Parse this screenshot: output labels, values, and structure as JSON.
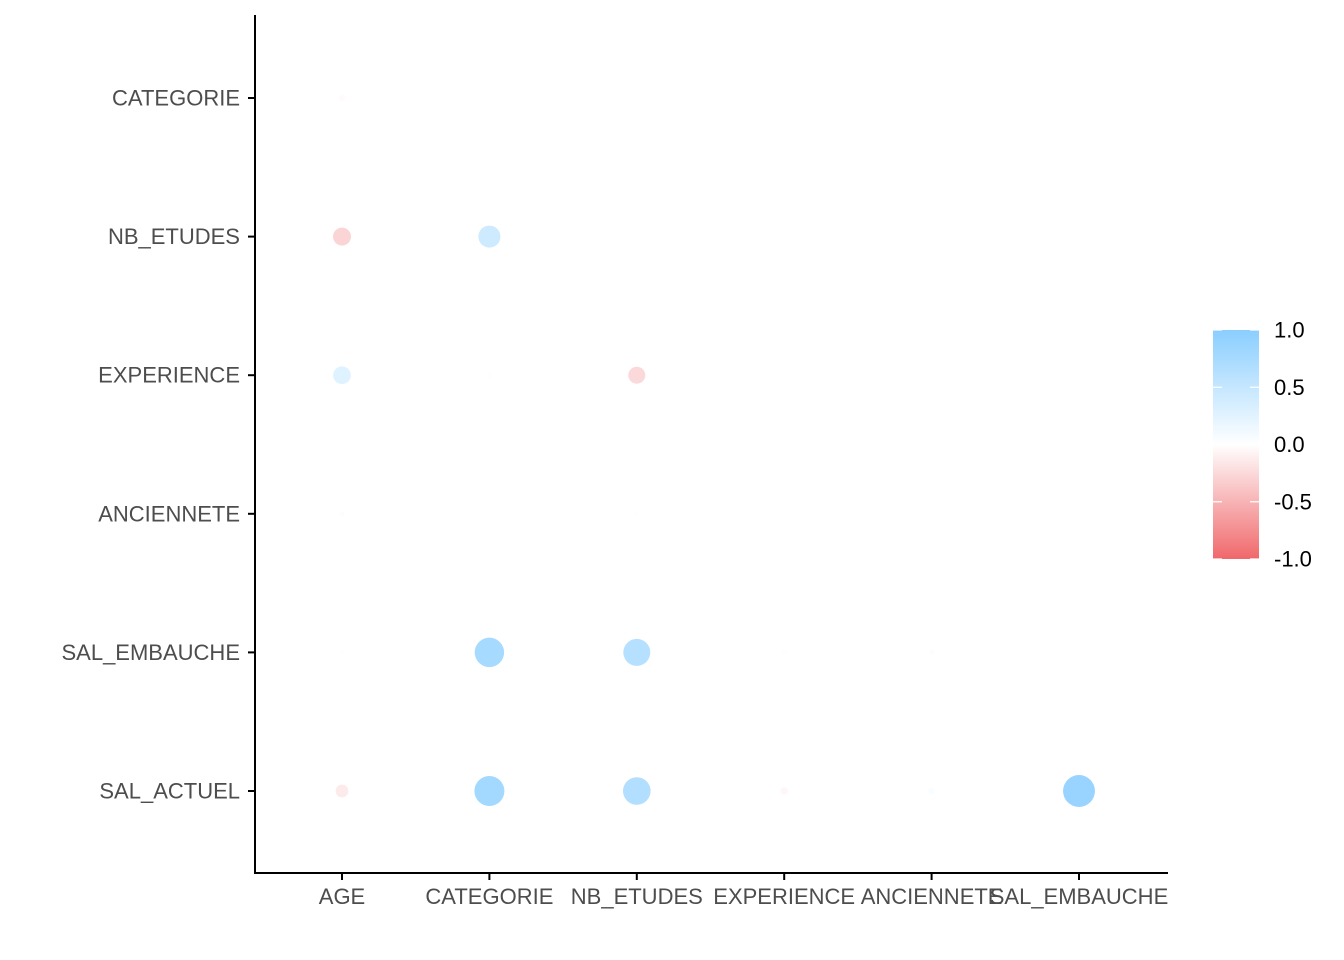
{
  "chart_data": {
    "type": "scatter",
    "subtype": "correlation-matrix-lower-triangle",
    "title": "",
    "xlabel": "",
    "ylabel": "",
    "x_categories": [
      "AGE",
      "CATEGORIE",
      "NB_ETUDES",
      "EXPERIENCE",
      "ANCIENNETE",
      "SAL_EMBAUCHE"
    ],
    "y_categories": [
      "CATEGORIE",
      "NB_ETUDES",
      "EXPERIENCE",
      "ANCIENNETE",
      "SAL_EMBAUCHE",
      "SAL_ACTUEL"
    ],
    "cells": [
      {
        "x": "AGE",
        "y": "CATEGORIE",
        "value": -0.03
      },
      {
        "x": "AGE",
        "y": "NB_ETUDES",
        "value": -0.28
      },
      {
        "x": "CATEGORIE",
        "y": "NB_ETUDES",
        "value": 0.42
      },
      {
        "x": "AGE",
        "y": "EXPERIENCE",
        "value": 0.27
      },
      {
        "x": "CATEGORIE",
        "y": "EXPERIENCE",
        "value": 0.02
      },
      {
        "x": "NB_ETUDES",
        "y": "EXPERIENCE",
        "value": -0.25
      },
      {
        "x": "AGE",
        "y": "ANCIENNETE",
        "value": -0.02
      },
      {
        "x": "CATEGORIE",
        "y": "ANCIENNETE",
        "value": 0.01
      },
      {
        "x": "NB_ETUDES",
        "y": "ANCIENNETE",
        "value": 0.02
      },
      {
        "x": "EXPERIENCE",
        "y": "ANCIENNETE",
        "value": 0.0
      },
      {
        "x": "AGE",
        "y": "SAL_EMBAUCHE",
        "value": -0.01
      },
      {
        "x": "CATEGORIE",
        "y": "SAL_EMBAUCHE",
        "value": 0.75
      },
      {
        "x": "NB_ETUDES",
        "y": "SAL_EMBAUCHE",
        "value": 0.63
      },
      {
        "x": "EXPERIENCE",
        "y": "SAL_EMBAUCHE",
        "value": 0.02
      },
      {
        "x": "ANCIENNETE",
        "y": "SAL_EMBAUCHE",
        "value": -0.02
      },
      {
        "x": "AGE",
        "y": "SAL_ACTUEL",
        "value": -0.14
      },
      {
        "x": "CATEGORIE",
        "y": "SAL_ACTUEL",
        "value": 0.78
      },
      {
        "x": "NB_ETUDES",
        "y": "SAL_ACTUEL",
        "value": 0.66
      },
      {
        "x": "EXPERIENCE",
        "y": "SAL_ACTUEL",
        "value": -0.05
      },
      {
        "x": "ANCIENNETE",
        "y": "SAL_ACTUEL",
        "value": 0.04
      },
      {
        "x": "SAL_EMBAUCHE",
        "y": "SAL_ACTUEL",
        "value": 0.88
      }
    ],
    "legend": {
      "position": "right",
      "type": "colorbar",
      "range": [
        -1.0,
        1.0
      ],
      "ticks": [
        "1.0",
        "0.5",
        "0.0",
        "-0.5",
        "-1.0"
      ],
      "tick_values": [
        1.0,
        0.5,
        0.0,
        -0.5,
        -1.0
      ],
      "colors": {
        "low": "#F0686B",
        "mid": "#FFFFFF",
        "high": "#8ACEFF"
      }
    },
    "grid": false
  }
}
